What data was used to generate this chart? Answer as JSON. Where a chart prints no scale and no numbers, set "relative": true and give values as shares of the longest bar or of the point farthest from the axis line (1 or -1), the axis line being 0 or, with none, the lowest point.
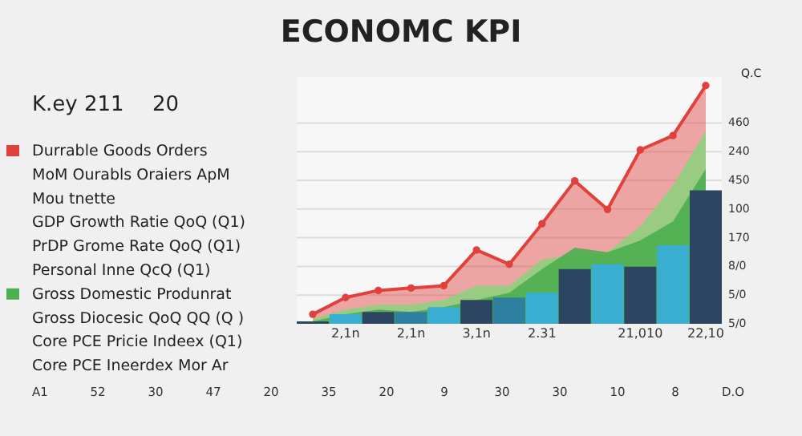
{
  "chart_data": {
    "type": "area",
    "title": "ECONOMC KPI",
    "ylabel": "Q.C",
    "relative": true,
    "categories": [
      null,
      "2,1n",
      null,
      "2,1n",
      null,
      "3,1n",
      null,
      "2.31",
      null,
      null,
      "21,010",
      null,
      "22,10"
    ],
    "grid": "y",
    "legend": "left",
    "annotations": [
      "K.ey 211",
      "20",
      "MoM Ourabls Oraiers ApM",
      "Mou tnette",
      "GDP Growth Ratie QoQ (Q1)",
      "PrDP Grome Rate QoQ (Q1)",
      "Personal Inne QcQ (Q1)",
      "Gross Diocesic QoQ QQ (Q )",
      "Core PCE Pricie Indeex (Q1)",
      "Core PCE Ineerdex Mor Ar",
      "A1",
      "52",
      "30",
      "47",
      "20",
      "35",
      "20",
      "9",
      "30",
      "30",
      "10",
      "8",
      "D.O",
      "5/0",
      "5/0",
      "8/0",
      "170",
      "100",
      "450",
      "240",
      "460"
    ],
    "series": [
      {
        "name": "Durrable Goods Orders",
        "color": "#e0413d",
        "marker": "circle",
        "values": [
          0.04,
          0.11,
          0.14,
          0.15,
          0.16,
          0.31,
          0.25,
          0.42,
          0.6,
          0.48,
          0.73,
          0.79,
          1.0
        ]
      },
      {
        "color": "#8fd07e",
        "values": [
          0.02,
          0.06,
          0.08,
          0.08,
          0.1,
          0.16,
          0.16,
          0.27,
          0.29,
          0.3,
          0.41,
          0.58,
          0.81
        ]
      },
      {
        "name": "Gross Domestic Produnrat",
        "color": "#4caf50",
        "values": [
          0.01,
          0.04,
          0.06,
          0.05,
          0.07,
          0.1,
          0.13,
          0.23,
          0.32,
          0.3,
          0.35,
          0.43,
          0.65
        ]
      },
      {
        "type": "bar",
        "values": [
          0.01,
          0.04,
          0.05,
          0.05,
          0.07,
          0.1,
          0.11,
          0.13,
          0.23,
          0.25,
          0.24,
          0.33,
          0.56
        ],
        "colors": [
          "#2c4560",
          "#3aaed0",
          "#2c4560",
          "#2f7fa0",
          "#3aaed0",
          "#2c4560",
          "#2f7fa0",
          "#3aaed0",
          "#2c4560",
          "#3aaed0",
          "#2c4560",
          "#3aaed0",
          "#2c4560"
        ]
      }
    ]
  }
}
